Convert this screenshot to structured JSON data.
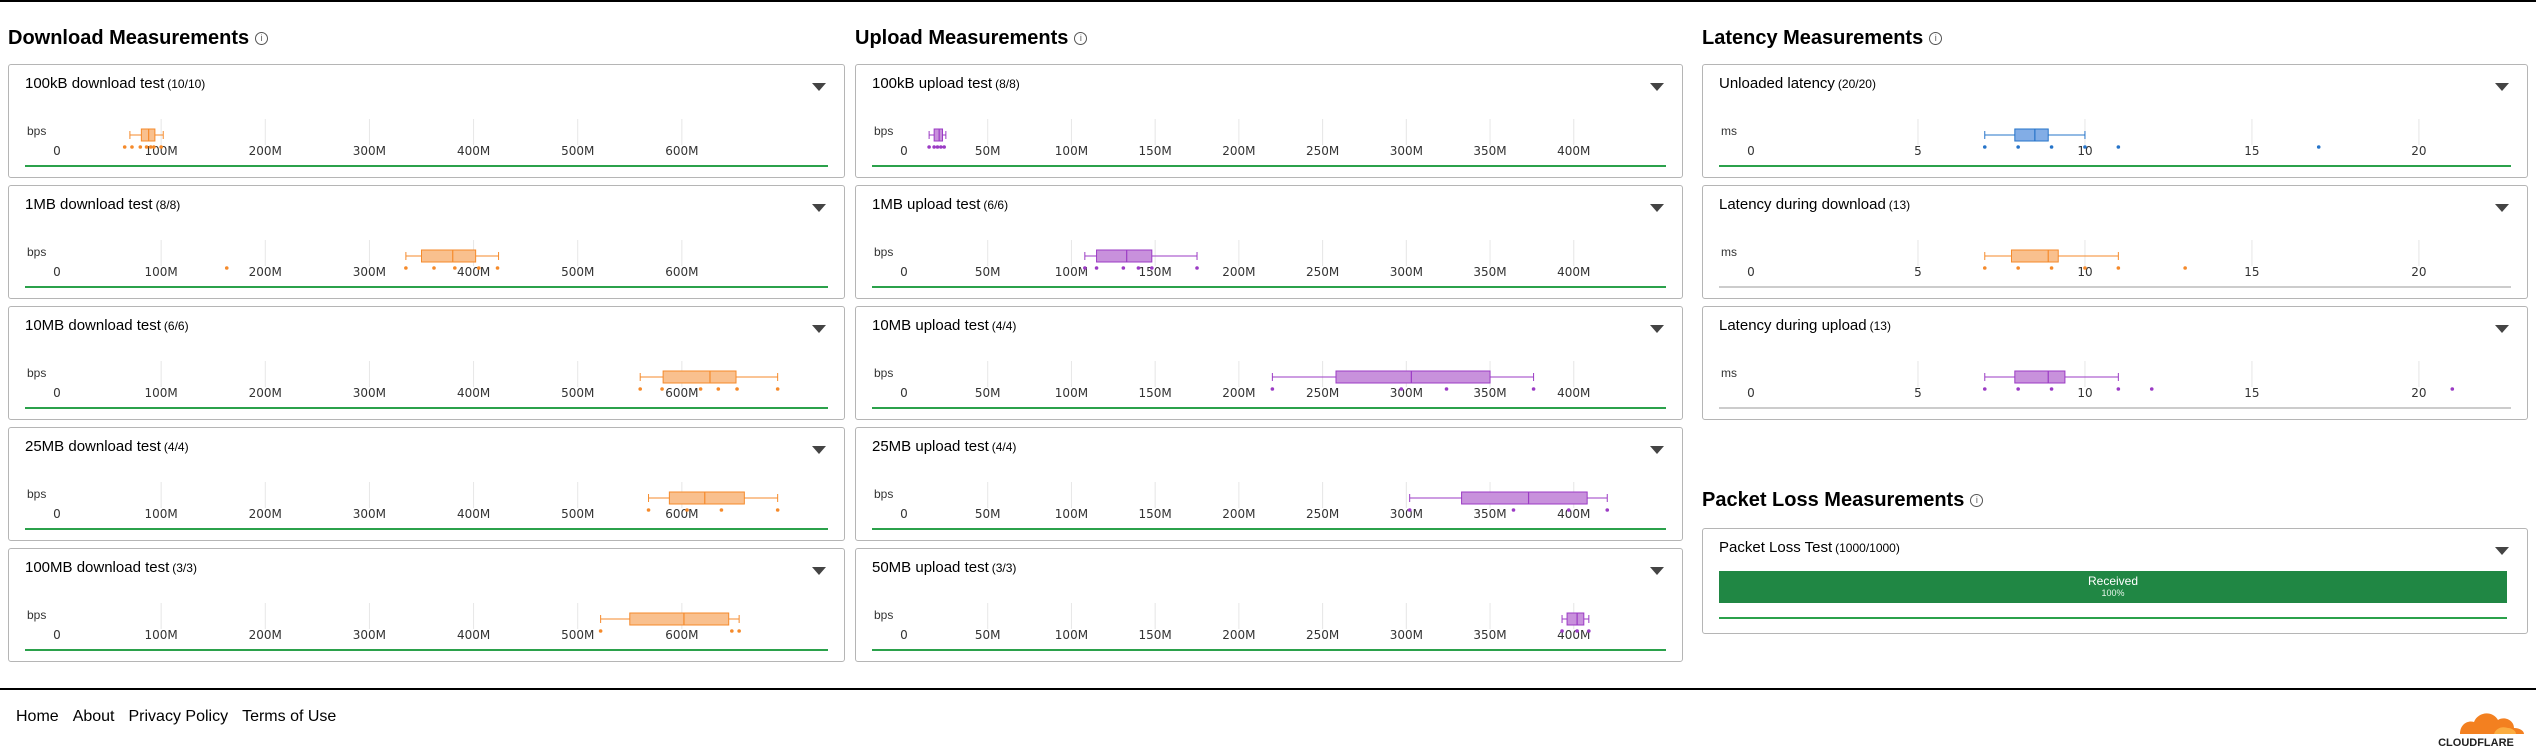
{
  "columns": {
    "download": {
      "title": "Download Measurements"
    },
    "upload": {
      "title": "Upload Measurements"
    },
    "latency": {
      "title": "Latency Measurements"
    },
    "packet_loss": {
      "title": "Packet Loss Measurements"
    }
  },
  "info_icon_glyph": "i",
  "colors": {
    "download": "#f58a2b",
    "download_fill": "#f9c08e",
    "upload": "#9b3bc4",
    "upload_fill": "#c891dc",
    "latency": "#2674c9",
    "latency_fill": "#82ade6",
    "success_line": "#2ba14b",
    "neutral_line": "#cccccc",
    "received": "#208744"
  },
  "download_cards": [
    {
      "title": "100kB download test",
      "count": "(10/10)",
      "unit": "bps",
      "axis": [
        "0",
        "100M",
        "200M",
        "300M",
        "400M",
        "500M",
        "600M"
      ],
      "tick_values": [
        0,
        100,
        200,
        300,
        400,
        500,
        600
      ],
      "max": 700,
      "box": {
        "min": 70,
        "q1": 81,
        "median": 88,
        "q3": 94,
        "max": 102
      },
      "points": [
        65,
        72,
        80,
        86,
        90,
        93,
        100
      ]
    },
    {
      "title": "1MB download test",
      "count": "(8/8)",
      "unit": "bps",
      "axis": [
        "0",
        "100M",
        "200M",
        "300M",
        "400M",
        "500M",
        "600M"
      ],
      "tick_values": [
        0,
        100,
        200,
        300,
        400,
        500,
        600
      ],
      "max": 700,
      "box": {
        "min": 335,
        "q1": 350,
        "median": 380,
        "q3": 402,
        "max": 424
      },
      "points": [
        163,
        335,
        362,
        382,
        405,
        423
      ]
    },
    {
      "title": "10MB download test",
      "count": "(6/6)",
      "unit": "bps",
      "axis": [
        "0",
        "100M",
        "200M",
        "300M",
        "400M",
        "500M",
        "600M"
      ],
      "tick_values": [
        0,
        100,
        200,
        300,
        400,
        500,
        600
      ],
      "max": 700,
      "box": {
        "min": 560,
        "q1": 582,
        "median": 627,
        "q3": 652,
        "max": 692
      },
      "points": [
        560,
        581,
        618,
        635,
        653,
        692
      ]
    },
    {
      "title": "25MB download test",
      "count": "(4/4)",
      "unit": "bps",
      "axis": [
        "0",
        "100M",
        "200M",
        "300M",
        "400M",
        "500M",
        "600M"
      ],
      "tick_values": [
        0,
        100,
        200,
        300,
        400,
        500,
        600
      ],
      "max": 700,
      "box": {
        "min": 568,
        "q1": 588,
        "median": 622,
        "q3": 660,
        "max": 692
      },
      "points": [
        568,
        605,
        638,
        692
      ]
    },
    {
      "title": "100MB download test",
      "count": "(3/3)",
      "unit": "bps",
      "axis": [
        "0",
        "100M",
        "200M",
        "300M",
        "400M",
        "500M",
        "600M"
      ],
      "tick_values": [
        0,
        100,
        200,
        300,
        400,
        500,
        600
      ],
      "max": 700,
      "box": {
        "min": 522,
        "q1": 550,
        "median": 602,
        "q3": 645,
        "max": 655
      },
      "points": [
        522,
        648,
        655
      ]
    }
  ],
  "upload_cards": [
    {
      "title": "100kB upload test",
      "count": "(8/8)",
      "unit": "bps",
      "axis": [
        "0",
        "50M",
        "100M",
        "150M",
        "200M",
        "250M",
        "300M",
        "350M",
        "400M"
      ],
      "tick_values": [
        0,
        50,
        100,
        150,
        200,
        250,
        300,
        350,
        400
      ],
      "max": 430,
      "box": {
        "min": 15,
        "q1": 18,
        "median": 21,
        "q3": 23,
        "max": 25
      },
      "points": [
        15,
        18,
        20,
        22,
        24
      ]
    },
    {
      "title": "1MB upload test",
      "count": "(6/6)",
      "unit": "bps",
      "axis": [
        "0",
        "50M",
        "100M",
        "150M",
        "200M",
        "250M",
        "300M",
        "350M",
        "400M"
      ],
      "tick_values": [
        0,
        50,
        100,
        150,
        200,
        250,
        300,
        350,
        400
      ],
      "max": 430,
      "box": {
        "min": 108,
        "q1": 115,
        "median": 133,
        "q3": 148,
        "max": 175
      },
      "points": [
        108,
        115,
        131,
        140,
        148,
        175
      ]
    },
    {
      "title": "10MB upload test",
      "count": "(4/4)",
      "unit": "bps",
      "axis": [
        "0",
        "50M",
        "100M",
        "150M",
        "200M",
        "250M",
        "300M",
        "350M",
        "400M"
      ],
      "tick_values": [
        0,
        50,
        100,
        150,
        200,
        250,
        300,
        350,
        400
      ],
      "max": 430,
      "box": {
        "min": 220,
        "q1": 258,
        "median": 303,
        "q3": 350,
        "max": 376
      },
      "points": [
        220,
        297,
        324,
        376
      ]
    },
    {
      "title": "25MB upload test",
      "count": "(4/4)",
      "unit": "bps",
      "axis": [
        "0",
        "50M",
        "100M",
        "150M",
        "200M",
        "250M",
        "300M",
        "350M",
        "400M"
      ],
      "tick_values": [
        0,
        50,
        100,
        150,
        200,
        250,
        300,
        350,
        400
      ],
      "max": 430,
      "box": {
        "min": 302,
        "q1": 333,
        "median": 373,
        "q3": 408,
        "max": 420
      },
      "points": [
        302,
        364,
        397,
        420
      ]
    },
    {
      "title": "50MB upload test",
      "count": "(3/3)",
      "unit": "bps",
      "axis": [
        "0",
        "50M",
        "100M",
        "150M",
        "200M",
        "250M",
        "300M",
        "350M",
        "400M"
      ],
      "tick_values": [
        0,
        50,
        100,
        150,
        200,
        250,
        300,
        350,
        400
      ],
      "max": 430,
      "box": {
        "min": 393,
        "q1": 396,
        "median": 402,
        "q3": 406,
        "max": 409
      },
      "points": [
        393,
        402,
        409
      ]
    }
  ],
  "latency_cards": [
    {
      "title": "Unloaded latency",
      "count": "(20/20)",
      "unit": "ms",
      "axis": [
        "0",
        "5",
        "10",
        "15",
        "20"
      ],
      "tick_values": [
        0,
        5,
        10,
        15,
        20
      ],
      "max": 21.5,
      "box": {
        "min": 7.0,
        "q1": 7.9,
        "median": 8.5,
        "q3": 8.9,
        "max": 10.0
      },
      "points": [
        7.0,
        8.0,
        9.0,
        10.0,
        11.0,
        17.0
      ]
    },
    {
      "title": "Latency during download",
      "count": "(13)",
      "unit": "ms",
      "axis": [
        "0",
        "5",
        "10",
        "15",
        "20"
      ],
      "tick_values": [
        0,
        5,
        10,
        15,
        20
      ],
      "max": 21.5,
      "box": {
        "min": 7.0,
        "q1": 7.8,
        "median": 8.9,
        "q3": 9.2,
        "max": 11.0
      },
      "points": [
        7.0,
        8.0,
        9.0,
        10.0,
        11.0,
        13.0
      ]
    },
    {
      "title": "Latency during upload",
      "count": "(13)",
      "unit": "ms",
      "axis": [
        "0",
        "5",
        "10",
        "15",
        "20"
      ],
      "tick_values": [
        0,
        5,
        10,
        15,
        20
      ],
      "max": 21.5,
      "box": {
        "min": 7.0,
        "q1": 7.9,
        "median": 8.9,
        "q3": 9.4,
        "max": 11.0
      },
      "points": [
        7.0,
        8.0,
        9.0,
        11.0,
        12.0,
        21.0
      ]
    }
  ],
  "packet_loss": {
    "title": "Packet Loss Test",
    "count": "(1000/1000)",
    "received_label": "Received",
    "received_pct": "100%",
    "received_fraction": 1.0
  },
  "footer": {
    "links": [
      "Home",
      "About",
      "Privacy Policy",
      "Terms of Use"
    ],
    "logo_text": "CLOUDFLARE"
  }
}
